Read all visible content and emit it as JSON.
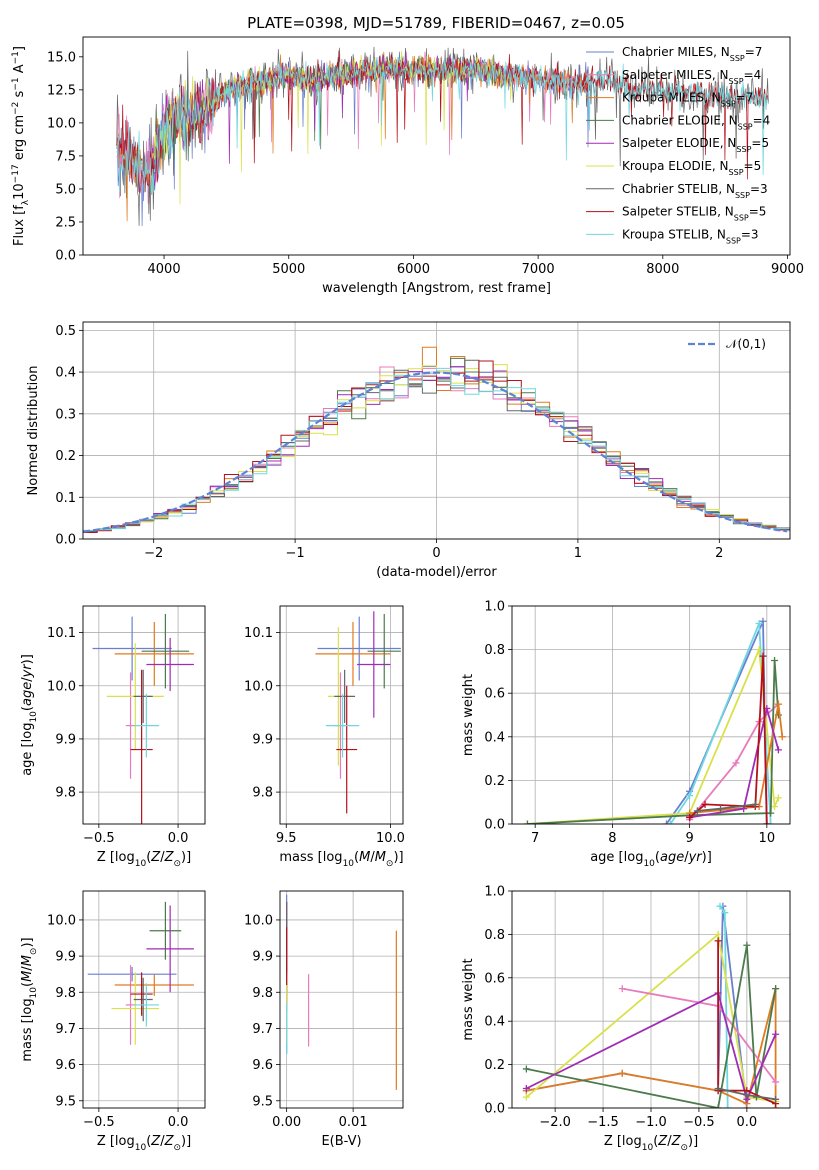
{
  "figure_title": "PLATE=0398, MJD=51789, FIBERID=0467, z=0.05",
  "chart_data": [
    {
      "id": "spectrum",
      "type": "line",
      "xlabel": "wavelength [Angstrom, rest frame]",
      "ylabel": "Flux [f_λ10^-17 erg cm^-2 s^-1 A^-1]",
      "xlim": [
        3350,
        9020
      ],
      "ylim": [
        0,
        16.5
      ],
      "xticks": [
        4000,
        5000,
        6000,
        7000,
        8000,
        9000
      ],
      "yticks": [
        0.0,
        2.5,
        5.0,
        7.5,
        10.0,
        12.5,
        15.0
      ],
      "legend_position": "upper right",
      "series": [
        {
          "name": "Chabrier MILES, N_SSP=7",
          "color": "#6a7fd1",
          "x_range": [
            3620,
            7410
          ]
        },
        {
          "name": "Salpeter MILES, N_SSP=4",
          "color": "#e87bbd",
          "x_range": [
            3620,
            7410
          ]
        },
        {
          "name": "Kroupa MILES, N_SSP=7",
          "color": "#e07b20",
          "x_range": [
            3620,
            7410
          ]
        },
        {
          "name": "Chabrier ELODIE, N_SSP=4",
          "color": "#4d7a4d",
          "x_range": [
            3900,
            6800
          ]
        },
        {
          "name": "Salpeter ELODIE, N_SSP=5",
          "color": "#a02cb5",
          "x_range": [
            3900,
            6800
          ]
        },
        {
          "name": "Kroupa ELODIE, N_SSP=5",
          "color": "#d9e14a",
          "x_range": [
            3900,
            6800
          ]
        },
        {
          "name": "Chabrier STELIB, N_SSP=3",
          "color": "#666666",
          "x_range": [
            3620,
            8850
          ]
        },
        {
          "name": "Salpeter STELIB, N_SSP=5",
          "color": "#b4111b",
          "x_range": [
            3620,
            8850
          ]
        },
        {
          "name": "Kroupa STELIB, N_SSP=3",
          "color": "#6ed8e0",
          "x_range": [
            3620,
            8850
          ]
        }
      ],
      "continuum_points": [
        [
          3620,
          8.0
        ],
        [
          3700,
          7.5
        ],
        [
          3800,
          7.0
        ],
        [
          3900,
          6.5
        ],
        [
          4000,
          9.5
        ],
        [
          4100,
          10.5
        ],
        [
          4300,
          10.8
        ],
        [
          4500,
          12.5
        ],
        [
          4700,
          13.0
        ],
        [
          5000,
          13.6
        ],
        [
          5200,
          13.3
        ],
        [
          5500,
          13.8
        ],
        [
          5800,
          14.2
        ],
        [
          6000,
          14.0
        ],
        [
          6500,
          14.0
        ],
        [
          7000,
          13.3
        ],
        [
          7300,
          12.9
        ],
        [
          7500,
          13.3
        ],
        [
          7800,
          12.6
        ],
        [
          8200,
          12.2
        ],
        [
          8600,
          11.9
        ],
        [
          8850,
          11.9
        ]
      ]
    },
    {
      "id": "residual_histogram",
      "type": "line",
      "xlabel": "(data-model)/error",
      "ylabel": "Normed distribution",
      "xlim": [
        -2.5,
        2.5
      ],
      "ylim": [
        0,
        0.52
      ],
      "xticks": [
        -2,
        -1,
        0,
        1,
        2
      ],
      "yticks": [
        0.0,
        0.1,
        0.2,
        0.3,
        0.4,
        0.5
      ],
      "legend_position": "upper right",
      "reference_curve": {
        "name": "𝒩(0,1)",
        "color": "#5e83d6"
      },
      "bin_width": 0.1,
      "series_colors": [
        "#6a7fd1",
        "#e87bbd",
        "#e07b20",
        "#4d7a4d",
        "#a02cb5",
        "#d9e14a",
        "#666666",
        "#b4111b",
        "#6ed8e0"
      ]
    },
    {
      "id": "age_vs_Z",
      "type": "scatter",
      "xlabel": "Z [log10(Z/Z⊙)]",
      "ylabel": "age  [log10(age/yr)]",
      "xlim": [
        -0.6,
        0.17
      ],
      "ylim": [
        9.74,
        10.15
      ],
      "xticks": [
        -0.5,
        0.0
      ],
      "yticks": [
        9.8,
        9.9,
        10.0,
        10.1
      ],
      "points": [
        {
          "color": "#6a7fd1",
          "x": -0.29,
          "y": 10.07,
          "xerr": 0.25,
          "yerr": 0.06
        },
        {
          "color": "#e87bbd",
          "x": -0.3,
          "y": 9.925,
          "xerr": 0.03,
          "yerr": 0.1
        },
        {
          "color": "#e07b20",
          "x": -0.15,
          "y": 10.06,
          "xerr": 0.25,
          "yerr": 0.06
        },
        {
          "color": "#4d7a4d",
          "x": -0.08,
          "y": 10.065,
          "xerr": 0.15,
          "yerr": 0.07
        },
        {
          "color": "#a02cb5",
          "x": -0.05,
          "y": 10.04,
          "xerr": 0.15,
          "yerr": 0.05
        },
        {
          "color": "#d9e14a",
          "x": -0.27,
          "y": 9.98,
          "xerr": 0.18,
          "yerr": 0.1
        },
        {
          "color": "#666666",
          "x": -0.22,
          "y": 9.98,
          "xerr": 0.06,
          "yerr": 0.05
        },
        {
          "color": "#b4111b",
          "x": -0.23,
          "y": 9.88,
          "xerr": 0.07,
          "yerr": 0.15
        },
        {
          "color": "#6ed8e0",
          "x": -0.2,
          "y": 9.925,
          "xerr": 0.08,
          "yerr": 0.06
        }
      ]
    },
    {
      "id": "age_vs_mass",
      "type": "scatter",
      "xlabel": "mass [log10(M/M⊙)]",
      "ylabel": "",
      "xlim": [
        9.47,
        10.06
      ],
      "ylim": [
        9.74,
        10.15
      ],
      "xticks": [
        9.5,
        10.0
      ],
      "yticks": [
        9.8,
        9.9,
        10.0,
        10.1
      ],
      "points": [
        {
          "color": "#6a7fd1",
          "x": 9.85,
          "y": 10.07,
          "xerr": 0.2,
          "yerr": 0.06
        },
        {
          "color": "#e87bbd",
          "x": 9.76,
          "y": 9.925,
          "xerr": 0.03,
          "yerr": 0.1
        },
        {
          "color": "#e07b20",
          "x": 9.82,
          "y": 10.06,
          "xerr": 0.18,
          "yerr": 0.06
        },
        {
          "color": "#4d7a4d",
          "x": 9.97,
          "y": 10.065,
          "xerr": 0.08,
          "yerr": 0.07
        },
        {
          "color": "#a02cb5",
          "x": 9.92,
          "y": 10.04,
          "xerr": 0.08,
          "yerr": 0.1
        },
        {
          "color": "#d9e14a",
          "x": 9.75,
          "y": 9.98,
          "xerr": 0.05,
          "yerr": 0.13
        },
        {
          "color": "#666666",
          "x": 9.78,
          "y": 9.98,
          "xerr": 0.05,
          "yerr": 0.05
        },
        {
          "color": "#b4111b",
          "x": 9.79,
          "y": 9.88,
          "xerr": 0.05,
          "yerr": 0.12
        },
        {
          "color": "#6ed8e0",
          "x": 9.77,
          "y": 9.925,
          "xerr": 0.08,
          "yerr": 0.06
        }
      ]
    },
    {
      "id": "weight_vs_age",
      "type": "line",
      "xlabel": "age  [log10(age/yr)]",
      "ylabel": "mass weight",
      "xlim": [
        6.7,
        10.3
      ],
      "ylim": [
        0,
        1.0
      ],
      "xticks": [
        7,
        8,
        9,
        10
      ],
      "yticks": [
        0.0,
        0.2,
        0.4,
        0.6,
        0.8,
        1.0
      ],
      "series": [
        {
          "color": "#6a7fd1",
          "x": [
            8.7,
            9.0,
            9.95,
            10.0
          ],
          "y": [
            0.0,
            0.15,
            0.93,
            0.0
          ]
        },
        {
          "color": "#6ed8e0",
          "x": [
            8.75,
            9.0,
            9.9,
            10.05
          ],
          "y": [
            0.0,
            0.13,
            0.92,
            0.0
          ]
        },
        {
          "color": "#d9e14a",
          "x": [
            6.9,
            9.0,
            9.9,
            10.1,
            10.15
          ],
          "y": [
            0.0,
            0.05,
            0.8,
            0.08,
            0.12
          ]
        },
        {
          "color": "#e87bbd",
          "x": [
            9.0,
            9.6,
            9.9,
            10.15
          ],
          "y": [
            0.02,
            0.28,
            0.47,
            0.55
          ]
        },
        {
          "color": "#4d7a4d",
          "x": [
            6.9,
            9.0,
            10.05,
            10.1,
            10.15
          ],
          "y": [
            0.0,
            0.04,
            0.05,
            0.75,
            0.5
          ]
        },
        {
          "color": "#e07b20",
          "x": [
            9.0,
            9.9,
            10.15,
            10.2
          ],
          "y": [
            0.05,
            0.08,
            0.55,
            0.4
          ]
        },
        {
          "color": "#a02cb5",
          "x": [
            9.0,
            9.7,
            10.0,
            10.15
          ],
          "y": [
            0.03,
            0.07,
            0.53,
            0.34
          ]
        },
        {
          "color": "#b4111b",
          "x": [
            9.0,
            9.2,
            9.85,
            9.95,
            10.0
          ],
          "y": [
            0.03,
            0.09,
            0.08,
            0.77,
            0.0
          ]
        },
        {
          "color": "#666666",
          "x": [
            9.1,
            9.4,
            9.85
          ],
          "y": [
            0.06,
            0.07,
            0.09
          ]
        }
      ]
    },
    {
      "id": "mass_vs_Z",
      "type": "scatter",
      "xlabel": "Z [log10(Z/Z⊙)]",
      "ylabel": "mass [log10(M/M⊙)]",
      "xlim": [
        -0.6,
        0.17
      ],
      "ylim": [
        9.48,
        10.08
      ],
      "xticks": [
        -0.5,
        0.0
      ],
      "yticks": [
        9.5,
        9.6,
        9.7,
        9.8,
        9.9,
        10.0
      ],
      "points": [
        {
          "color": "#6a7fd1",
          "x": -0.29,
          "y": 9.85,
          "xerr": 0.28,
          "yerr": 0.02
        },
        {
          "color": "#e87bbd",
          "x": -0.3,
          "y": 9.765,
          "xerr": 0.03,
          "yerr": 0.11
        },
        {
          "color": "#e07b20",
          "x": -0.15,
          "y": 9.82,
          "xerr": 0.25,
          "yerr": 0.03
        },
        {
          "color": "#4d7a4d",
          "x": -0.08,
          "y": 9.97,
          "xerr": 0.1,
          "yerr": 0.08
        },
        {
          "color": "#a02cb5",
          "x": -0.05,
          "y": 9.92,
          "xerr": 0.15,
          "yerr": 0.12
        },
        {
          "color": "#d9e14a",
          "x": -0.27,
          "y": 9.755,
          "xerr": 0.15,
          "yerr": 0.1
        },
        {
          "color": "#666666",
          "x": -0.22,
          "y": 9.78,
          "xerr": 0.06,
          "yerr": 0.06
        },
        {
          "color": "#b4111b",
          "x": -0.23,
          "y": 9.795,
          "xerr": 0.07,
          "yerr": 0.06
        },
        {
          "color": "#6ed8e0",
          "x": -0.2,
          "y": 9.765,
          "xerr": 0.08,
          "yerr": 0.06
        }
      ]
    },
    {
      "id": "mass_vs_ebv",
      "type": "scatter",
      "xlabel": "E(B-V)",
      "ylabel": "",
      "xlim": [
        -0.001,
        0.0175
      ],
      "ylim": [
        9.48,
        10.08
      ],
      "xticks": [
        0.0,
        0.01
      ],
      "yticks": [
        9.5,
        9.6,
        9.7,
        9.8,
        9.9,
        10.0
      ],
      "points": [
        {
          "color": "#6a7fd1",
          "x": 0.0,
          "y": 9.85,
          "xerr": 0.0,
          "yerr": 0.22
        },
        {
          "color": "#e87bbd",
          "x": 0.0033,
          "y": 9.75,
          "xerr": 0.0,
          "yerr": 0.1
        },
        {
          "color": "#e07b20",
          "x": 0.0165,
          "y": 9.75,
          "xerr": 0.0,
          "yerr": 0.22
        },
        {
          "color": "#4d7a4d",
          "x": 0.0,
          "y": 9.9,
          "xerr": 0.0,
          "yerr": 0.1
        },
        {
          "color": "#a02cb5",
          "x": 0.0,
          "y": 9.9,
          "xerr": 0.0,
          "yerr": 0.15
        },
        {
          "color": "#d9e14a",
          "x": 0.0,
          "y": 9.76,
          "xerr": 0.0,
          "yerr": 0.1
        },
        {
          "color": "#666666",
          "x": 0.0,
          "y": 9.95,
          "xerr": 0.0,
          "yerr": 0.1
        },
        {
          "color": "#b4111b",
          "x": 0.0,
          "y": 9.9,
          "xerr": 0.0,
          "yerr": 0.08
        },
        {
          "color": "#6ed8e0",
          "x": 0.0,
          "y": 9.7,
          "xerr": 0.0,
          "yerr": 0.07
        }
      ]
    },
    {
      "id": "weight_vs_Z",
      "type": "line",
      "xlabel": "Z [log10(Z/Z⊙)]",
      "ylabel": "mass weight",
      "xlim": [
        -2.45,
        0.45
      ],
      "ylim": [
        0,
        1.0
      ],
      "xticks": [
        -2.0,
        -1.5,
        -1.0,
        -0.5,
        0.0
      ],
      "yticks": [
        0.0,
        0.2,
        0.4,
        0.6,
        0.8,
        1.0
      ],
      "series": [
        {
          "color": "#6a7fd1",
          "x": [
            -2.3,
            -1.3,
            -0.3,
            -0.25,
            0.0
          ],
          "y": [
            0.08,
            0.16,
            0.08,
            0.93,
            0.0
          ]
        },
        {
          "color": "#6ed8e0",
          "x": [
            -0.28,
            -0.23,
            -0.2
          ],
          "y": [
            0.93,
            0.9,
            0.0
          ]
        },
        {
          "color": "#e07b20",
          "x": [
            -2.3,
            -1.3,
            -0.3,
            0.0,
            0.3,
            0.3
          ],
          "y": [
            0.08,
            0.16,
            0.08,
            0.02,
            0.55,
            0.0
          ]
        },
        {
          "color": "#d9e14a",
          "x": [
            -2.3,
            -0.3,
            0.0,
            0.3
          ],
          "y": [
            0.05,
            0.8,
            0.05,
            0.03
          ]
        },
        {
          "color": "#e87bbd",
          "x": [
            -1.3,
            -0.3,
            0.3
          ],
          "y": [
            0.55,
            0.47,
            0.12
          ]
        },
        {
          "color": "#4d7a4d",
          "x": [
            -2.3,
            -0.3,
            0.0,
            0.1,
            0.3
          ],
          "y": [
            0.18,
            0.0,
            0.75,
            0.05,
            0.55
          ]
        },
        {
          "color": "#a02cb5",
          "x": [
            -2.3,
            -0.3,
            0.0,
            0.3
          ],
          "y": [
            0.09,
            0.53,
            0.04,
            0.34
          ]
        },
        {
          "color": "#b4111b",
          "x": [
            -0.3,
            -0.3,
            0.0,
            0.3
          ],
          "y": [
            0.77,
            0.08,
            0.08,
            0.02
          ]
        },
        {
          "color": "#666666",
          "x": [
            -0.3,
            0.0,
            0.3
          ],
          "y": [
            0.09,
            0.06,
            0.04
          ]
        }
      ]
    }
  ]
}
